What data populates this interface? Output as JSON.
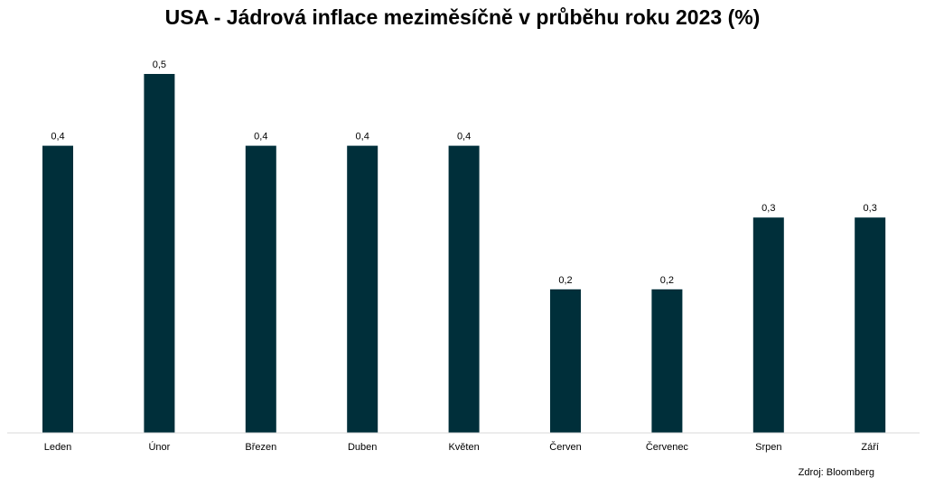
{
  "chart_data": {
    "type": "bar",
    "title": "USA - Jádrová inflace meziměsíčně v průběhu roku 2023 (%)",
    "categories": [
      "Leden",
      "Únor",
      "Březen",
      "Duben",
      "Květen",
      "Červen",
      "Červenec",
      "Srpen",
      "Září"
    ],
    "values": [
      0.4,
      0.5,
      0.4,
      0.4,
      0.4,
      0.2,
      0.2,
      0.3,
      0.3
    ],
    "data_labels": [
      "0,4",
      "0,5",
      "0,4",
      "0,4",
      "0,4",
      "0,2",
      "0,2",
      "0,3",
      "0,3"
    ],
    "ylim": [
      0,
      0.5
    ],
    "grid": false,
    "legend": "none",
    "bar_color": "#002f3a",
    "baseline_color": "#d9d9d9"
  },
  "source": "Zdroj: Bloomberg"
}
